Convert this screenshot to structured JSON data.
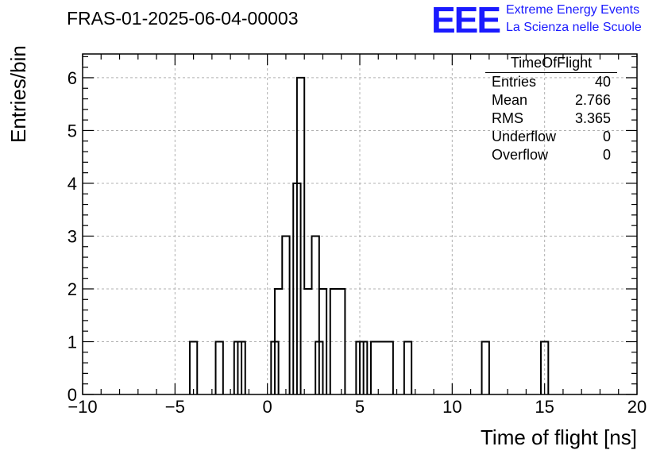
{
  "header": {
    "title": "FRAS-01-2025-06-04-00003",
    "logo_text": "EEE",
    "logo_line1": "Extreme Energy Events",
    "logo_line2": "La Scienza nelle Scuole"
  },
  "stats": {
    "title": "TimeOfFlight",
    "rows": [
      {
        "label": "Entries",
        "value": "40"
      },
      {
        "label": "Mean",
        "value": "2.766"
      },
      {
        "label": "RMS",
        "value": "3.365"
      },
      {
        "label": "Underflow",
        "value": "0"
      },
      {
        "label": "Overflow",
        "value": "0"
      }
    ]
  },
  "colors": {
    "line": "#000000",
    "grid": "#b0b0b0",
    "logo": "#1a1aff"
  },
  "chart_data": {
    "type": "bar",
    "style": "step-histogram",
    "xlabel": "Time of flight [ns]",
    "ylabel": "Entries/bin",
    "xlim": [
      -10,
      20
    ],
    "ylim": [
      0,
      6.45
    ],
    "grid": true,
    "xticks": [
      "−10",
      "−5",
      "0",
      "5",
      "10",
      "15",
      "20"
    ],
    "yticks": [
      "0",
      "1",
      "2",
      "3",
      "4",
      "5",
      "6"
    ],
    "bin_width": 0.4,
    "bins": [
      {
        "x": -4.2,
        "y": 1
      },
      {
        "x": -2.8,
        "y": 1
      },
      {
        "x": -1.8,
        "y": 1
      },
      {
        "x": -1.6,
        "y": 1
      },
      {
        "x": 0.2,
        "y": 1
      },
      {
        "x": 0.4,
        "y": 2
      },
      {
        "x": 0.8,
        "y": 3
      },
      {
        "x": 1.4,
        "y": 4
      },
      {
        "x": 1.6,
        "y": 6
      },
      {
        "x": 2.0,
        "y": 2
      },
      {
        "x": 2.4,
        "y": 3
      },
      {
        "x": 2.6,
        "y": 1
      },
      {
        "x": 2.8,
        "y": 2
      },
      {
        "x": 3.4,
        "y": 2
      },
      {
        "x": 3.8,
        "y": 2
      },
      {
        "x": 4.8,
        "y": 1
      },
      {
        "x": 5.0,
        "y": 1
      },
      {
        "x": 5.6,
        "y": 1
      },
      {
        "x": 6.0,
        "y": 1
      },
      {
        "x": 6.4,
        "y": 1
      },
      {
        "x": 7.4,
        "y": 1
      },
      {
        "x": 11.6,
        "y": 1
      },
      {
        "x": 14.8,
        "y": 1
      }
    ]
  }
}
